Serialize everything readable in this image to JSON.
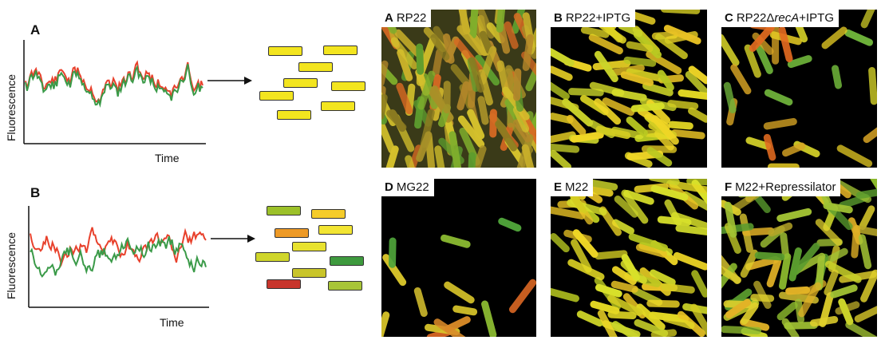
{
  "left_panels": [
    {
      "letter": "A",
      "ylabel": "Fluorescence",
      "xlabel": "Time",
      "cell_colors": [
        "#f3e51f",
        "#f3e51f",
        "#f3e51f",
        "#f3e51f",
        "#f3e51f",
        "#f3e51f",
        "#f3e51f",
        "#f3e51f"
      ]
    },
    {
      "letter": "B",
      "ylabel": "Fluorescence",
      "xlabel": "Time",
      "cell_colors": [
        "#9cc129",
        "#f5cc2a",
        "#ee9a26",
        "#f2e533",
        "#e8e22f",
        "#cfd62b",
        "#3e9a3e",
        "#c9c52a",
        "#c8352c",
        "#a8c537"
      ]
    }
  ],
  "trace_colors": {
    "red": "#e8412c",
    "green": "#3a9a48"
  },
  "micrographs": [
    {
      "letter": "A",
      "label_pre": "RP22",
      "label_em": "",
      "label_post": "",
      "style": "mixed"
    },
    {
      "letter": "B",
      "label_pre": "RP22+IPTG",
      "label_em": "",
      "label_post": "",
      "style": "yellow"
    },
    {
      "letter": "C",
      "label_pre": "RP22Δ",
      "label_em": "recA",
      "label_post": "+IPTG",
      "style": "sparse"
    },
    {
      "letter": "D",
      "label_pre": "MG22",
      "label_em": "",
      "label_post": "",
      "style": "few"
    },
    {
      "letter": "E",
      "label_pre": "M22",
      "label_em": "",
      "label_post": "",
      "style": "yellow"
    },
    {
      "letter": "F",
      "label_pre": "M22+Repressilator",
      "label_em": "",
      "label_post": "",
      "style": "mixed2"
    }
  ]
}
